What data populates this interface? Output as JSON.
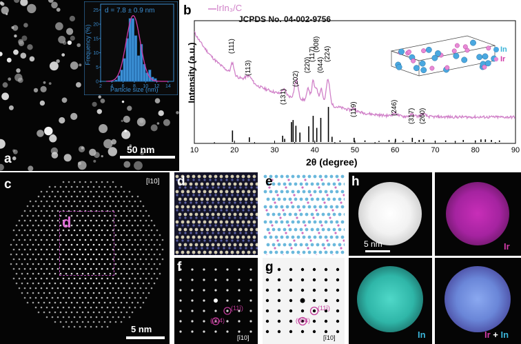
{
  "panels": {
    "a": {
      "label": "a",
      "scale_bar": "50 nm",
      "inset": {
        "annotation": "d = 7.8 ± 0.9 nm",
        "xlabel": "Particle size (nm)",
        "ylabel": "Frequency (%)",
        "xticks": [
          "2",
          "4",
          "6",
          "8",
          "10",
          "12",
          "14"
        ],
        "yticks": [
          "0",
          "5",
          "10",
          "15",
          "20",
          "25"
        ]
      }
    },
    "b": {
      "label": "b",
      "legend": "IrIn₃/C",
      "reference": "JCPDS No. 04-002-9756",
      "peaks": [
        "(111)",
        "(113)",
        "(131)",
        "(202)",
        "(220)",
        "(117)",
        "(008)",
        "(044)",
        "(224)",
        "(119)",
        "(246)",
        "(317)",
        "(260)"
      ],
      "structure_legend": {
        "in": "In",
        "ir": "Ir"
      }
    },
    "c": {
      "label": "c",
      "zone": "[ī10]",
      "box_label": "d",
      "scale_bar": "5 nm"
    },
    "d": {
      "label": "d"
    },
    "e": {
      "label": "e"
    },
    "f": {
      "label": "f",
      "zone": "[ī10]",
      "spot1": "(004)",
      "spot2": "(11ī)"
    },
    "g": {
      "label": "g",
      "zone": "[ī10]",
      "spot1": "(004)",
      "spot2": "(11ī)"
    },
    "h": {
      "label": "h",
      "scale_bar": "5 nm",
      "map_ir": "Ir",
      "map_in": "In",
      "overlay_ir": "Ir",
      "overlay_plus": " + ",
      "overlay_in": "In"
    }
  },
  "colors": {
    "ir": "#d23aa8",
    "in": "#3ab4d8",
    "pattern": "#d080c8",
    "hist": "#3b8fd4"
  },
  "chart_data": [
    {
      "type": "bar",
      "title": "",
      "annotation": "d = 7.8 ± 0.9 nm",
      "xlabel": "Particle size (nm)",
      "ylabel": "Frequency (%)",
      "xlim": [
        2,
        15
      ],
      "ylim": [
        0,
        27
      ],
      "bin_centers": [
        4.75,
        5.25,
        5.75,
        6.25,
        6.75,
        7.25,
        7.75,
        8.25,
        8.75,
        9.25,
        9.75,
        10.25,
        10.75,
        11.25,
        11.75
      ],
      "values": [
        0.5,
        2,
        4,
        8,
        15,
        22,
        22,
        16,
        9,
        13,
        6,
        3,
        4,
        1.5,
        1
      ],
      "fit": "gaussian"
    },
    {
      "type": "line",
      "title": "",
      "xlabel": "2θ (degree)",
      "ylabel": "Intensity (a.u.)",
      "xlim": [
        10,
        90
      ],
      "xticks": [
        10,
        20,
        30,
        40,
        50,
        60,
        70,
        80,
        90
      ],
      "series": [
        {
          "name": "IrIn₃/C"
        }
      ],
      "peak_positions": [
        19.5,
        23.6,
        32.3,
        35.4,
        38.4,
        39.6,
        40.5,
        41.6,
        43.3,
        49.8,
        60.0,
        64.3,
        67.0
      ],
      "reference_sticks": {
        "name": "JCPDS No. 04-002-9756",
        "x": [
          19.5,
          23.7,
          32.0,
          32.5,
          34.2,
          34.6,
          35.3,
          36.3,
          38.5,
          39.6,
          40.5,
          41.5,
          43.4,
          44.3,
          46.3,
          49.8,
          52.5,
          56.0,
          58.5,
          60.1,
          62.0,
          64.3,
          66.0,
          67.1,
          70.0,
          72.6,
          75.0,
          77.0,
          80.0,
          81.4,
          82.5,
          84.0,
          86.0
        ],
        "y": [
          0.22,
          0.09,
          0.12,
          0.06,
          0.38,
          0.42,
          0.31,
          0.18,
          0.3,
          0.5,
          0.27,
          0.46,
          0.67,
          0.1,
          0.03,
          0.08,
          0.03,
          0.02,
          0.04,
          0.06,
          0.02,
          0.08,
          0.04,
          0.05,
          0.02,
          0.03,
          0.02,
          0.04,
          0.03,
          0.05,
          0.05,
          0.04,
          0.03
        ]
      }
    }
  ]
}
